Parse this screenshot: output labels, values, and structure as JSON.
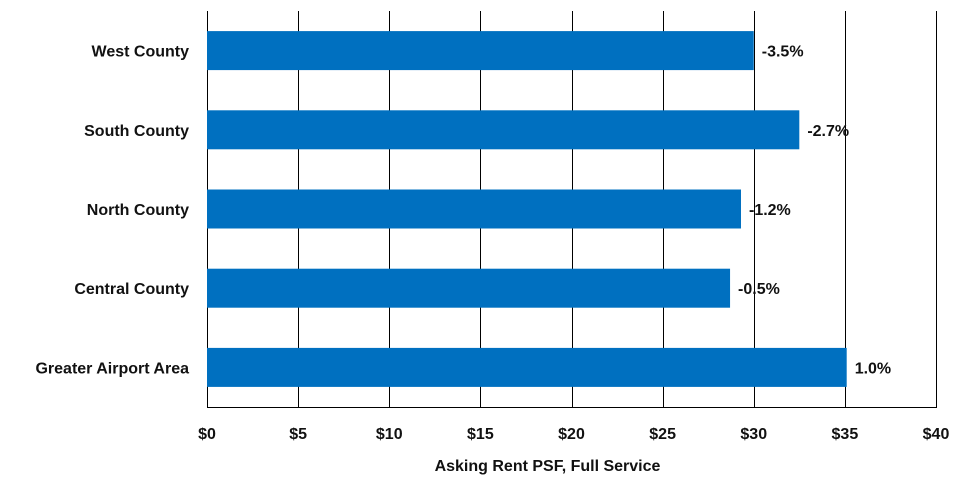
{
  "chart_data": {
    "type": "bar",
    "orientation": "horizontal",
    "categories": [
      "West County",
      "South County",
      "North County",
      "Central County",
      "Greater Airport Area"
    ],
    "values": [
      30.0,
      32.5,
      29.3,
      28.7,
      35.1
    ],
    "data_labels": [
      "-3.5%",
      "-2.7%",
      "-1.2%",
      "-0.5%",
      "1.0%"
    ],
    "xlabel": "Asking Rent PSF, Full Service",
    "xlim": [
      0,
      40
    ],
    "x_ticks": [
      0,
      5,
      10,
      15,
      20,
      25,
      30,
      35,
      40
    ],
    "x_tick_labels": [
      "$0",
      "$5",
      "$10",
      "$15",
      "$20",
      "$25",
      "$30",
      "$35",
      "$40"
    ],
    "grid": "vertical",
    "legend": "none",
    "bar_color": "#0070c0",
    "grid_color": "#000000"
  }
}
